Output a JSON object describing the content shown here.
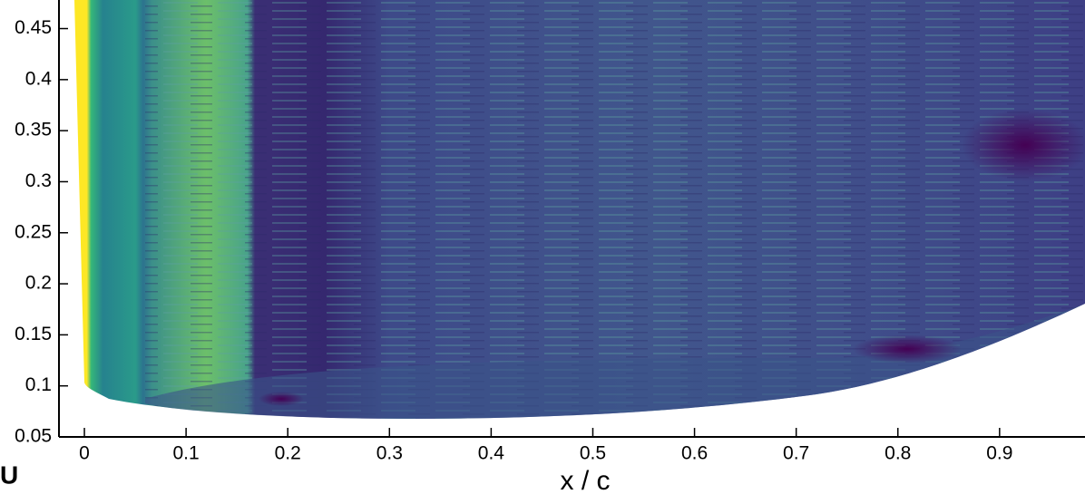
{
  "chart_data": {
    "type": "contour",
    "xlabel": "x / c",
    "colorbar_label": "U",
    "xlim": [
      -0.025,
      0.984
    ],
    "ylim": [
      0.05,
      0.478
    ],
    "xticks": [
      0,
      0.1,
      0.2,
      0.3,
      0.4,
      0.5,
      0.6,
      0.7,
      0.8,
      0.9
    ],
    "yticks": [
      0.05,
      0.1,
      0.15,
      0.2,
      0.25,
      0.3,
      0.35,
      0.4,
      0.45
    ]
  }
}
